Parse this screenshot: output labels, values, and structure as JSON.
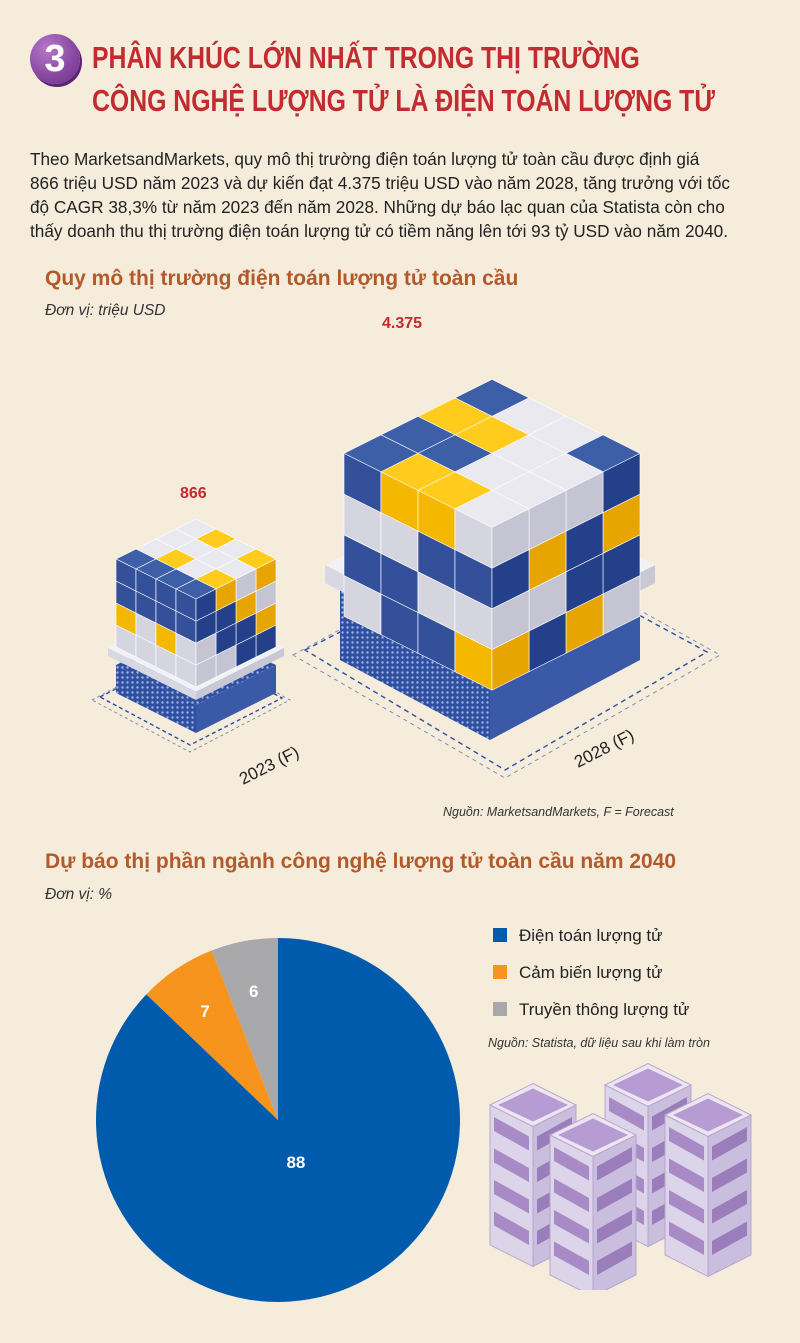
{
  "header": {
    "number": "3",
    "title_line1": "PHÂN KHÚC LỚN NHẤT TRONG THỊ TRƯỜNG",
    "title_line2": "CÔNG NGHỆ LƯỢNG TỬ LÀ ĐIỆN TOÁN LƯỢNG TỬ"
  },
  "intro": {
    "lines": [
      "Theo MarketsandMarkets, quy mô thị trường điện toán lượng tử toàn cầu được định giá",
      "866 triệu USD năm 2023 và dự kiến đạt 4.375 triệu USD vào năm 2028, tăng trưởng với tốc",
      "độ CAGR 38,3% từ năm 2023 đến năm 2028. Những dự báo lạc quan của Statista còn cho",
      "thấy doanh thu thị trường điện toán lượng tử có tiềm năng lên tới 93 tỷ USD vào năm 2040."
    ]
  },
  "section1": {
    "title": "Quy mô thị trường điện toán lượng tử toàn cầu",
    "unit": "Đơn vị: triệu USD",
    "source": "Nguồn: MarketsandMarkets, F = Forecast"
  },
  "section2": {
    "title": "Dự báo thị phần ngành công nghệ lượng tử toàn cầu năm 2040",
    "unit": "Đơn vị: %",
    "source": "Nguồn: Statista, dữ liệu sau khi làm tròn"
  },
  "colors": {
    "blue": "#005bac",
    "orange": "#f7941d",
    "gray": "#a8a8aa",
    "red": "#c32b30",
    "cube_blue": "#3d5fa8",
    "cube_yellow": "#ffcc1e",
    "cube_white": "#e9e9ef"
  },
  "chart_data": [
    {
      "type": "bar",
      "categories": [
        "2023 (F)",
        "2028 (F)"
      ],
      "values": [
        866,
        4375
      ],
      "value_labels": [
        "866",
        "4.375"
      ],
      "title": "Quy mô thị trường điện toán lượng tử toàn cầu"
    },
    {
      "type": "pie",
      "categories": [
        "Điện toán lượng tử",
        "Cảm biến lượng tử",
        "Truyền thông lượng tử"
      ],
      "values": [
        88,
        7,
        6
      ],
      "value_labels": [
        "88",
        "7",
        "6"
      ],
      "colors": [
        "#005bac",
        "#f7941d",
        "#a8a8aa"
      ],
      "legend": "right",
      "title": "Dự báo thị phần ngành công nghệ lượng tử toàn cầu năm 2040"
    }
  ]
}
